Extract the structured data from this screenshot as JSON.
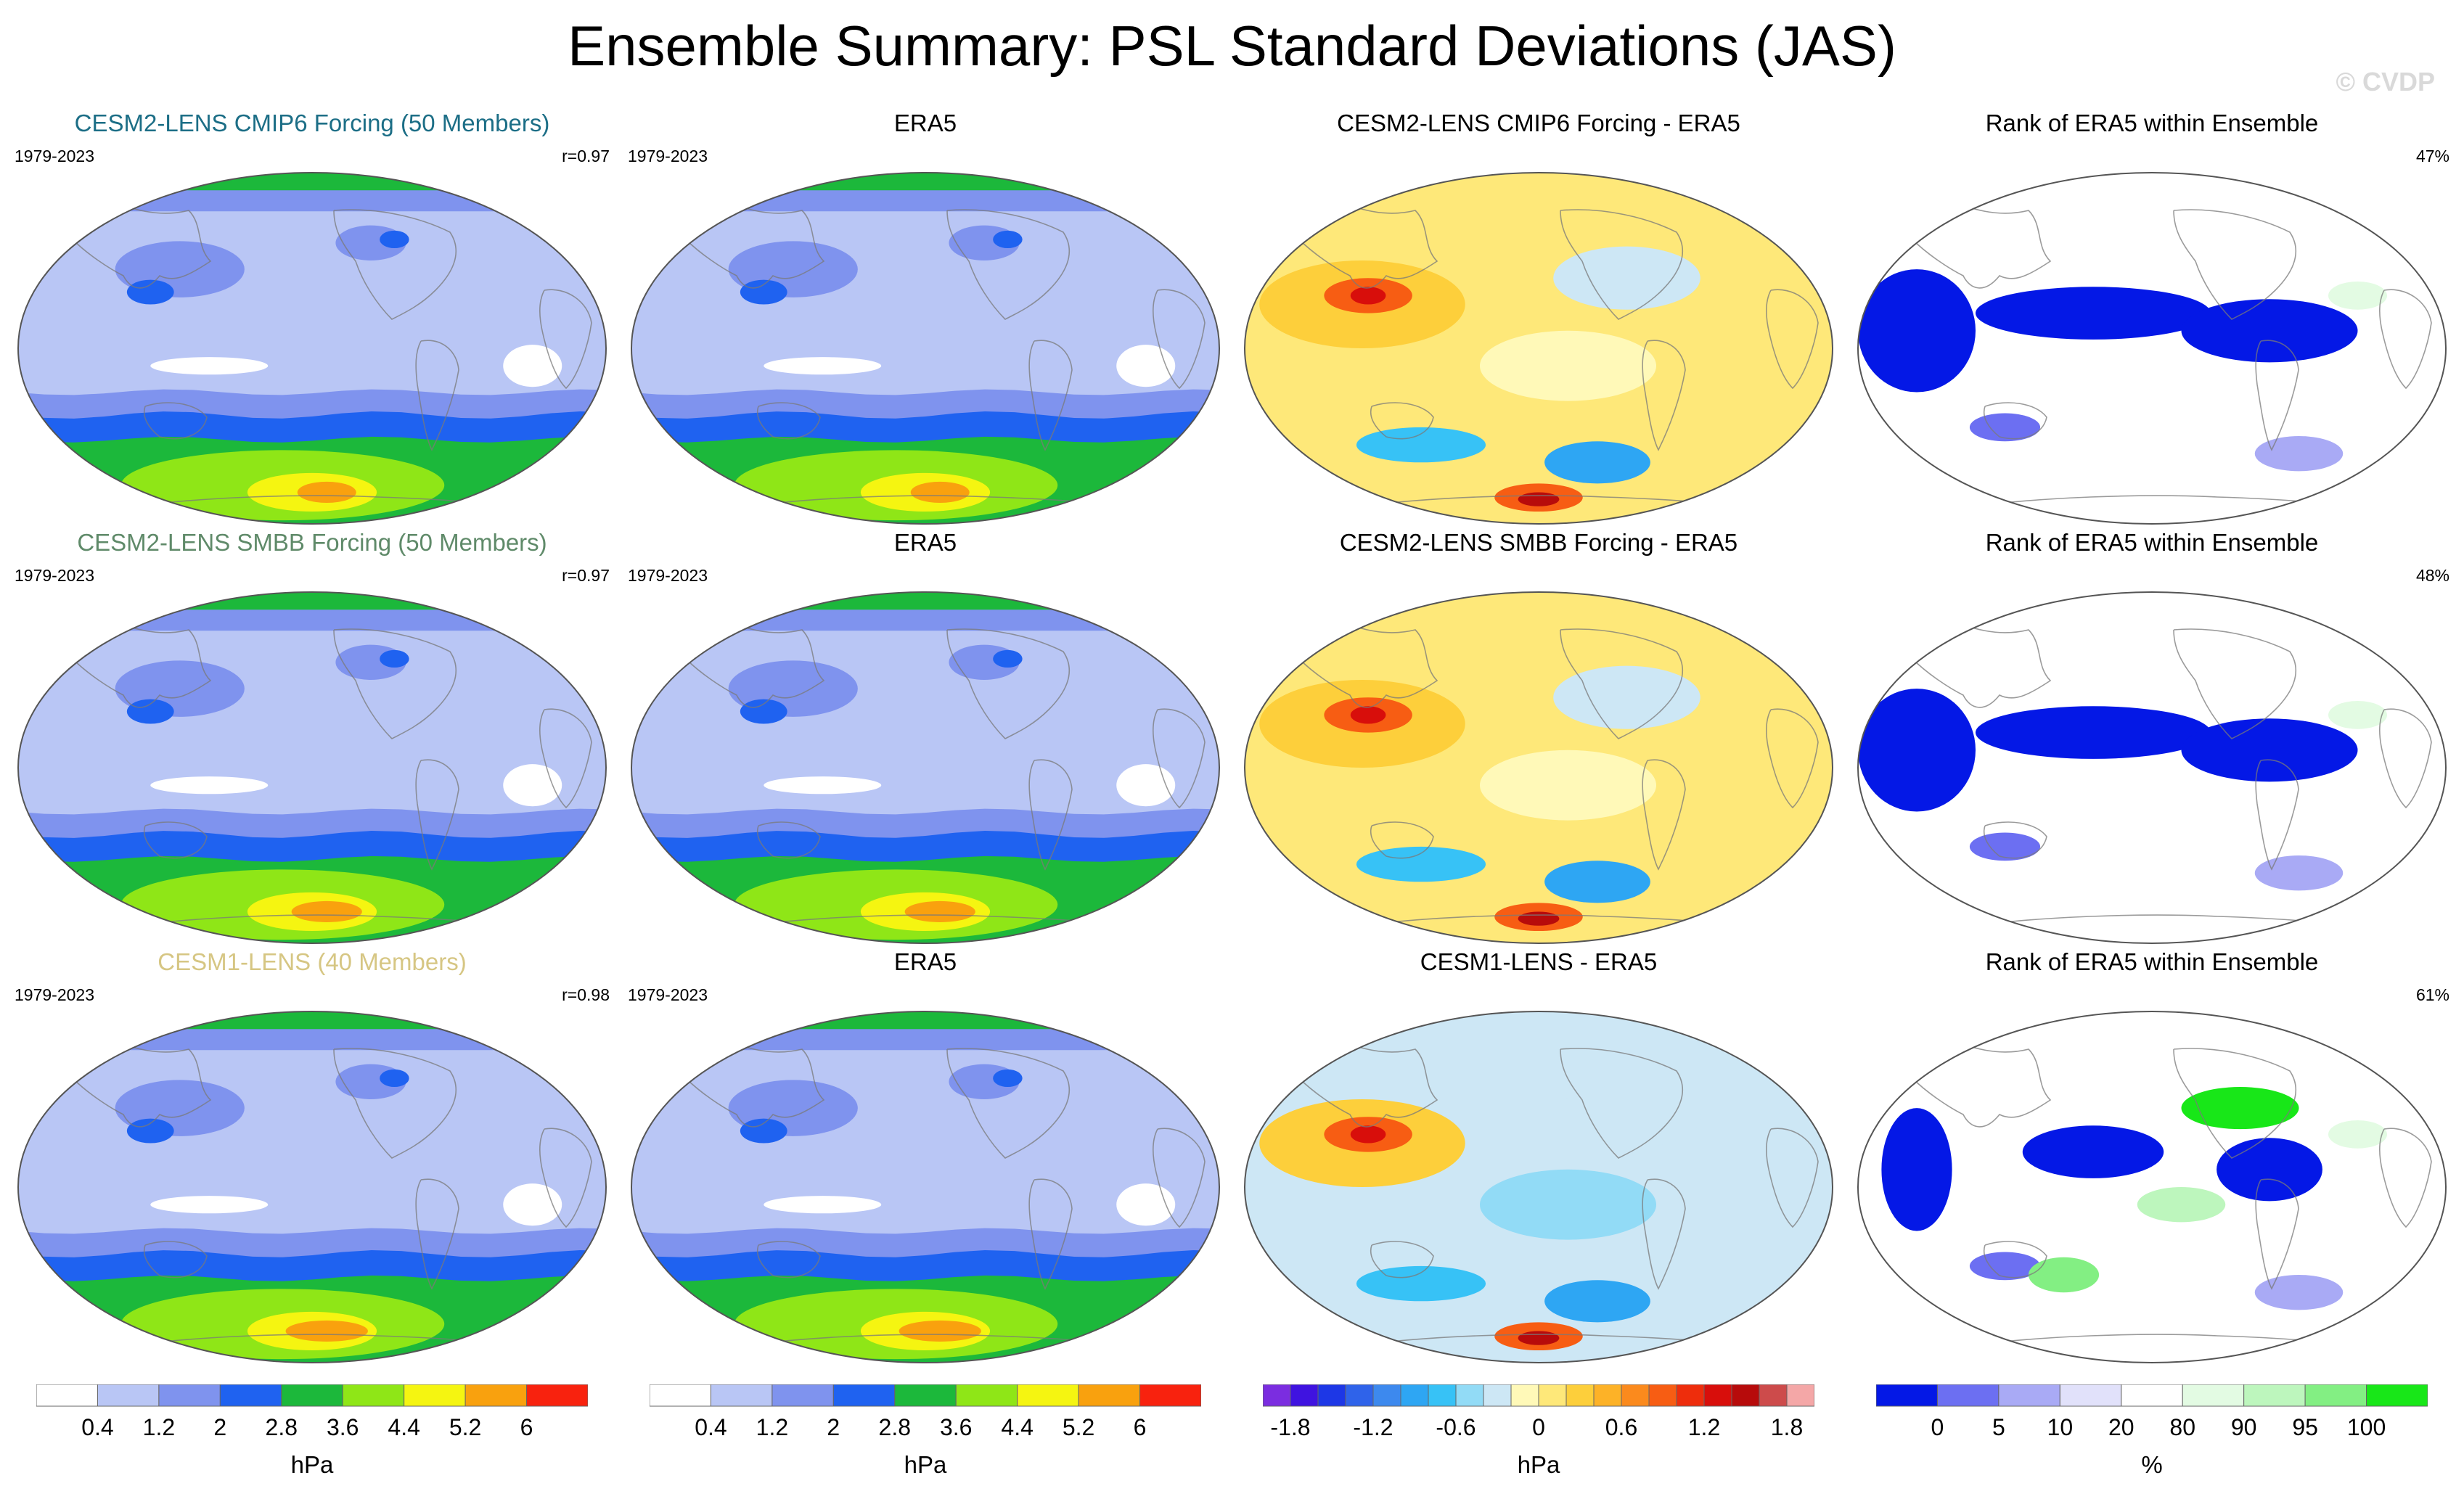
{
  "title": "Ensemble Summary: PSL Standard Deviations (JAS)",
  "copyright": "© CVDP",
  "colors": {
    "sd_levels": [
      "#ffffff",
      "#b9c6f5",
      "#7f93ee",
      "#1f62f0",
      "#1cb83b",
      "#8fe617",
      "#f5f511",
      "#f9a10e",
      "#f8220e"
    ],
    "diff_levels": [
      "#7b2de0",
      "#3f13e0",
      "#1d37e6",
      "#2f63ea",
      "#3d89ee",
      "#2ea6f3",
      "#37c2f6",
      "#92dbf6",
      "#cde7f5",
      "#fff9b8",
      "#fee879",
      "#fdcf3b",
      "#fdb227",
      "#fb8a1d",
      "#f75d13",
      "#ee2d0c",
      "#d80e0b",
      "#b70b0b",
      "#cd4b4b",
      "#f4a7a7"
    ],
    "rank_levels": [
      "#0418e6",
      "#6c6ff2",
      "#a9aaf5",
      "#e1e1fa",
      "#ffffff",
      "#e3fbe3",
      "#bdf6bd",
      "#83ef83",
      "#18e718"
    ]
  },
  "colorbars": [
    {
      "units": "hPa",
      "type": "sd",
      "ticks": [
        "0.4",
        "1.2",
        "2",
        "2.8",
        "3.6",
        "4.4",
        "5.2",
        "6"
      ]
    },
    {
      "units": "hPa",
      "type": "sd",
      "ticks": [
        "0.4",
        "1.2",
        "2",
        "2.8",
        "3.6",
        "4.4",
        "5.2",
        "6"
      ]
    },
    {
      "units": "hPa",
      "type": "diff",
      "ticks": [
        "-1.8",
        "-1.2",
        "-0.6",
        "0",
        "0.6",
        "1.2",
        "1.8"
      ]
    },
    {
      "units": "%",
      "type": "rank",
      "ticks": [
        "0",
        "5",
        "10",
        "20",
        "80",
        "90",
        "95",
        "100"
      ]
    }
  ],
  "rows": [
    {
      "model": {
        "title": "CESM2-LENS CMIP6 Forcing (50 Members)",
        "title_color": "#1c6e86",
        "period": "1979-2023",
        "stat": "r=0.97"
      },
      "obs": {
        "title": "ERA5",
        "period": "1979-2023"
      },
      "diff": {
        "title": "CESM2-LENS CMIP6 Forcing - ERA5"
      },
      "rank": {
        "title": "Rank of ERA5 within Ensemble",
        "stat": "47%"
      }
    },
    {
      "model": {
        "title": "CESM2-LENS SMBB Forcing (50 Members)",
        "title_color": "#5f8a69",
        "period": "1979-2023",
        "stat": "r=0.97"
      },
      "obs": {
        "title": "ERA5",
        "period": "1979-2023"
      },
      "diff": {
        "title": "CESM2-LENS SMBB Forcing - ERA5"
      },
      "rank": {
        "title": "Rank of ERA5 within Ensemble",
        "stat": "48%"
      }
    },
    {
      "model": {
        "title": "CESM1-LENS (40 Members)",
        "title_color": "#d6c683",
        "period": "1979-2023",
        "stat": "r=0.98"
      },
      "obs": {
        "title": "ERA5",
        "period": "1979-2023"
      },
      "diff": {
        "title": "CESM1-LENS - ERA5"
      },
      "rank": {
        "title": "Rank of ERA5 within Ensemble",
        "stat": "61%"
      }
    }
  ],
  "chart_data": {
    "type": "heatmap",
    "title": "Ensemble Summary: PSL Standard Deviations (JAS)",
    "projection": "Robinson, Pacific-centered global maps",
    "units_sd": "hPa",
    "units_rank": "%",
    "sd_contour_levels": [
      0.4,
      0.8,
      1.2,
      1.6,
      2,
      2.4,
      2.8,
      3.2,
      3.6,
      4,
      4.4,
      4.8,
      5.2,
      5.6,
      6
    ],
    "diff_contour_levels": [
      -1.8,
      -1.2,
      -0.6,
      0,
      0.6,
      1.2,
      1.8
    ],
    "rank_levels": [
      0,
      5,
      10,
      20,
      80,
      90,
      95,
      100
    ],
    "pattern_correlations": [
      {
        "model": "CESM2-LENS CMIP6 Forcing (50 Members)",
        "r": 0.97,
        "rank_pct": 47
      },
      {
        "model": "CESM2-LENS SMBB Forcing (50 Members)",
        "r": 0.97,
        "rank_pct": 48
      },
      {
        "model": "CESM1-LENS (40 Members)",
        "r": 0.98,
        "rank_pct": 61
      }
    ],
    "period": "1979-2023"
  }
}
